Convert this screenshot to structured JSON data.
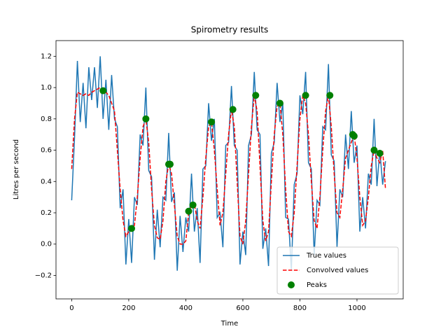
{
  "chart_data": {
    "type": "line",
    "title": "Spirometry results",
    "xlabel": "Time",
    "ylabel": "Litres per second",
    "x": [
      0,
      10,
      20,
      30,
      40,
      50,
      60,
      70,
      80,
      90,
      100,
      110,
      120,
      130,
      140,
      150,
      160,
      170,
      180,
      190,
      200,
      210,
      220,
      230,
      240,
      250,
      260,
      270,
      280,
      290,
      300,
      310,
      320,
      330,
      340,
      350,
      360,
      370,
      380,
      390,
      400,
      410,
      420,
      430,
      440,
      450,
      460,
      470,
      480,
      490,
      500,
      510,
      520,
      530,
      540,
      550,
      560,
      570,
      580,
      590,
      600,
      610,
      620,
      630,
      640,
      650,
      660,
      670,
      680,
      690,
      700,
      710,
      720,
      730,
      740,
      750,
      760,
      770,
      780,
      790,
      800,
      810,
      820,
      830,
      840,
      850,
      860,
      870,
      880,
      890,
      900,
      910,
      920,
      930,
      940,
      950,
      960,
      970,
      980,
      990,
      1000,
      1010,
      1020,
      1030,
      1040,
      1050,
      1060,
      1070,
      1080,
      1090,
      1100
    ],
    "series": [
      {
        "name": "True values",
        "color": "#1f77b4",
        "style": "solid",
        "values": [
          0.28,
          0.68,
          1.17,
          0.78,
          1.03,
          0.74,
          1.13,
          0.92,
          1.13,
          0.87,
          1.2,
          0.8,
          1.05,
          0.73,
          1.08,
          0.8,
          0.75,
          0.23,
          0.35,
          -0.13,
          0.16,
          -0.12,
          0.3,
          0.25,
          0.7,
          0.63,
          1.0,
          0.47,
          0.43,
          -0.1,
          0.22,
          -0.02,
          0.3,
          0.28,
          0.71,
          0.27,
          0.33,
          -0.17,
          0.18,
          -0.05,
          0.17,
          0.08,
          0.45,
          0.08,
          0.23,
          -0.12,
          0.48,
          0.5,
          0.9,
          0.66,
          0.8,
          0.17,
          0.2,
          -0.02,
          0.63,
          0.65,
          1.01,
          0.63,
          0.6,
          -0.13,
          0.08,
          -0.07,
          0.63,
          0.7,
          1.1,
          0.73,
          0.7,
          -0.03,
          0.1,
          -0.14,
          0.58,
          0.65,
          1.03,
          0.78,
          0.9,
          0.17,
          0.16,
          -0.17,
          0.38,
          0.45,
          0.95,
          0.83,
          1.1,
          0.52,
          0.48,
          -0.07,
          0.28,
          0.25,
          0.75,
          0.73,
          1.15,
          0.57,
          0.53,
          -0.02,
          0.35,
          0.3,
          0.7,
          0.48,
          0.85,
          0.52,
          0.63,
          0.08,
          0.3,
          0.1,
          0.45,
          0.38,
          0.8,
          0.37,
          0.6,
          0.38,
          0.53
        ]
      },
      {
        "name": "Convolved values",
        "color": "red",
        "style": "dashed",
        "values": [
          0.48,
          0.8,
          0.97,
          0.96,
          0.95,
          0.96,
          0.95,
          0.97,
          0.98,
          0.99,
          1.0,
          0.98,
          0.97,
          0.95,
          0.9,
          0.85,
          0.6,
          0.35,
          0.15,
          0.05,
          0.08,
          0.1,
          0.12,
          0.3,
          0.55,
          0.75,
          0.8,
          0.65,
          0.35,
          0.12,
          0.04,
          0.03,
          0.15,
          0.4,
          0.51,
          0.45,
          0.25,
          0.05,
          0.0,
          0.0,
          0.02,
          0.2,
          0.25,
          0.26,
          0.15,
          0.1,
          0.3,
          0.55,
          0.75,
          0.78,
          0.6,
          0.35,
          0.12,
          0.2,
          0.45,
          0.7,
          0.86,
          0.75,
          0.4,
          0.05,
          0.0,
          0.15,
          0.45,
          0.75,
          0.95,
          0.85,
          0.5,
          0.15,
          0.02,
          0.08,
          0.4,
          0.7,
          0.88,
          0.9,
          0.7,
          0.35,
          0.08,
          0.05,
          0.2,
          0.5,
          0.8,
          0.95,
          0.9,
          0.7,
          0.4,
          0.15,
          0.1,
          0.3,
          0.6,
          0.85,
          0.95,
          0.75,
          0.45,
          0.2,
          0.17,
          0.35,
          0.55,
          0.6,
          0.65,
          0.7,
          0.55,
          0.3,
          0.12,
          0.15,
          0.3,
          0.5,
          0.6,
          0.55,
          0.52,
          0.6,
          0.35
        ]
      },
      {
        "name": "Peaks",
        "color": "green",
        "style": "scatter",
        "x": [
          110,
          210,
          260,
          340,
          345,
          410,
          425,
          490,
          565,
          645,
          730,
          820,
          905,
          985,
          990,
          1060,
          1080
        ],
        "values": [
          0.98,
          0.1,
          0.8,
          0.51,
          0.51,
          0.21,
          0.25,
          0.78,
          0.86,
          0.95,
          0.9,
          0.95,
          0.95,
          0.7,
          0.69,
          0.6,
          0.58
        ]
      }
    ],
    "xlim": [
      -55,
      1162
    ],
    "ylim": [
      -0.35,
      1.3
    ],
    "xticks": [
      0,
      200,
      400,
      600,
      800,
      1000
    ],
    "yticks": [
      {
        "value": -0.2,
        "label": "−0.2"
      },
      {
        "value": 0,
        "label": "0.0"
      },
      0.2,
      0.4,
      0.6,
      0.8,
      {
        "value": 1,
        "label": "1.0"
      },
      1.2
    ],
    "legend": "lower right"
  }
}
